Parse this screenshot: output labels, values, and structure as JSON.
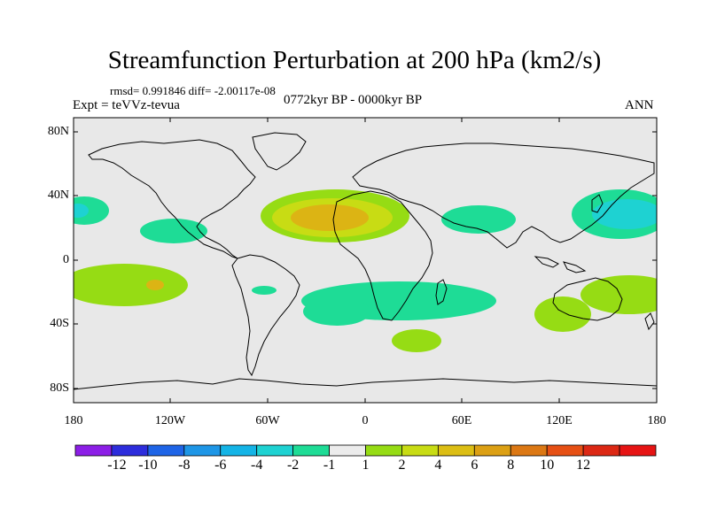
{
  "title": "Streamfunction Perturbation at 200 hPa (km2/s)",
  "stats": "rmsd= 0.991846 diff= -2.00117e-08",
  "experiment": "Expt = teVVz-tevua",
  "period": "0772kyr BP - 0000kyr BP",
  "season": "ANN",
  "lat_labels": [
    "80N",
    "40N",
    "0",
    "40S",
    "80S"
  ],
  "lon_labels": [
    "180",
    "120W",
    "60W",
    "0",
    "60E",
    "120E",
    "180"
  ],
  "colorbar": {
    "colors": [
      "#8c1ee6",
      "#2d2ddc",
      "#1e64e6",
      "#1e96e6",
      "#14b4e6",
      "#1ed2d2",
      "#1edc96",
      "#ececec",
      "#96dc14",
      "#c8dc14",
      "#dcbe14",
      "#dca014",
      "#dc7814",
      "#e65014",
      "#dc2814",
      "#e61414"
    ],
    "labels": [
      "-12",
      "-10",
      "-8",
      "-6",
      "-4",
      "-2",
      "-1",
      "1",
      "2",
      "4",
      "6",
      "8",
      "10",
      "12"
    ]
  },
  "fill_colors": {
    "ocean": "#e8e8e8",
    "pos1": "#96dc14",
    "pos2": "#c8dc14",
    "pos3": "#dcb414",
    "pos4": "#dca014",
    "neg1": "#1edc96",
    "neg2": "#1ed2d2",
    "neg3": "#14c0dc"
  }
}
